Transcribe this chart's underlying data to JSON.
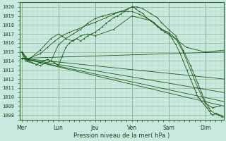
{
  "bg_color": "#c8e8e0",
  "grid_color_minor": "#b0d8b0",
  "grid_color_major": "#90b890",
  "line_color": "#1a5c1a",
  "ylabel_ticks": [
    1008,
    1009,
    1010,
    1011,
    1012,
    1013,
    1014,
    1015,
    1016,
    1017,
    1018,
    1019,
    1020
  ],
  "xlabel": "Pression niveau de la mer( hPa )",
  "day_labels": [
    "Mer",
    "Lun",
    "Jeu",
    "Ven",
    "Sam",
    "Dim"
  ],
  "day_positions": [
    0,
    1,
    2,
    3,
    4,
    5
  ],
  "xlim": [
    -0.05,
    5.5
  ],
  "ylim": [
    1007.5,
    1020.5
  ],
  "lines": [
    {
      "x": [
        0.0,
        0.1,
        0.15,
        0.2,
        0.5,
        0.7,
        0.9,
        1.1,
        1.3,
        1.5,
        1.8,
        2.0,
        2.3,
        2.5,
        2.7,
        2.9,
        3.0,
        3.15,
        3.3,
        3.5,
        3.7,
        3.8,
        4.0,
        4.2,
        4.4,
        4.6,
        4.7,
        4.8,
        4.9,
        5.0,
        5.1,
        5.15,
        5.25,
        5.35,
        5.45
      ],
      "y": [
        1015.0,
        1014.5,
        1014.2,
        1014.3,
        1014.8,
        1015.5,
        1016.2,
        1016.8,
        1017.2,
        1017.5,
        1018.0,
        1018.3,
        1018.8,
        1019.2,
        1019.5,
        1019.8,
        1020.0,
        1020.0,
        1019.8,
        1019.3,
        1018.8,
        1018.3,
        1017.5,
        1016.8,
        1015.2,
        1013.5,
        1012.5,
        1011.5,
        1010.5,
        1009.5,
        1008.8,
        1008.5,
        1008.2,
        1008.0,
        1007.8
      ]
    },
    {
      "x": [
        0.0,
        0.1,
        0.15,
        0.5,
        0.8,
        1.0,
        1.2,
        1.4,
        1.6,
        1.8,
        2.0,
        2.2,
        2.5,
        2.7,
        2.9,
        3.0,
        3.2,
        3.4,
        3.6,
        3.8,
        4.0,
        4.2,
        4.4,
        4.6,
        4.8,
        5.0,
        5.2,
        5.4
      ],
      "y": [
        1015.0,
        1014.3,
        1014.0,
        1015.2,
        1016.5,
        1017.0,
        1016.5,
        1017.0,
        1017.5,
        1018.2,
        1018.7,
        1019.0,
        1019.3,
        1019.5,
        1019.5,
        1019.5,
        1019.2,
        1018.8,
        1018.3,
        1017.5,
        1017.2,
        1016.5,
        1015.0,
        1013.0,
        1011.0,
        1009.3,
        1008.8,
        1009.0
      ]
    },
    {
      "x": [
        0.0,
        0.1,
        0.5,
        0.8,
        1.0,
        1.2,
        1.4,
        1.6,
        1.8,
        2.0,
        2.5,
        3.0,
        3.5,
        4.0,
        4.5,
        5.0,
        5.5
      ],
      "y": [
        1015.0,
        1014.0,
        1013.5,
        1014.0,
        1015.8,
        1016.5,
        1016.2,
        1016.8,
        1017.0,
        1016.8,
        1017.5,
        1019.0,
        1018.5,
        1017.0,
        1015.5,
        1015.0,
        1015.2
      ]
    },
    {
      "x": [
        0.0,
        5.5
      ],
      "y": [
        1014.3,
        1015.0
      ]
    },
    {
      "x": [
        0.0,
        5.5
      ],
      "y": [
        1014.3,
        1012.0
      ]
    },
    {
      "x": [
        0.0,
        5.5
      ],
      "y": [
        1014.3,
        1010.5
      ]
    },
    {
      "x": [
        0.0,
        5.5
      ],
      "y": [
        1014.3,
        1009.5
      ]
    },
    {
      "x": [
        0.0,
        5.5
      ],
      "y": [
        1014.3,
        1009.0
      ]
    },
    {
      "x": [
        0.0,
        0.05,
        0.1,
        0.15,
        0.2,
        0.3,
        0.4,
        0.5,
        0.6,
        0.7,
        0.8,
        0.9,
        1.0,
        1.1,
        1.2,
        1.3,
        1.4,
        1.5,
        1.6,
        1.7,
        1.8,
        1.9,
        2.0,
        2.1,
        2.2,
        2.3,
        2.4,
        2.5,
        2.6,
        2.7,
        2.8,
        2.9,
        3.0,
        3.05,
        3.1,
        3.2,
        3.3,
        3.4,
        3.5,
        3.6,
        3.7,
        3.8,
        3.9,
        4.0,
        4.1,
        4.2,
        4.3,
        4.4,
        4.5,
        4.6,
        4.7,
        4.75,
        4.8,
        4.85,
        4.9,
        4.95,
        5.0,
        5.05,
        5.1,
        5.15,
        5.2,
        5.3,
        5.4,
        5.45,
        5.5
      ],
      "y": [
        1015.0,
        1014.8,
        1014.5,
        1014.2,
        1014.0,
        1013.8,
        1013.6,
        1013.8,
        1014.0,
        1014.2,
        1014.0,
        1013.8,
        1013.5,
        1014.5,
        1015.5,
        1016.0,
        1016.3,
        1016.5,
        1016.2,
        1016.5,
        1016.8,
        1017.0,
        1017.2,
        1017.5,
        1017.8,
        1018.2,
        1018.5,
        1018.8,
        1019.0,
        1019.2,
        1019.5,
        1019.8,
        1020.0,
        1020.0,
        1019.8,
        1019.5,
        1019.3,
        1018.8,
        1018.5,
        1018.2,
        1017.8,
        1017.5,
        1017.2,
        1017.0,
        1016.5,
        1015.8,
        1015.0,
        1014.0,
        1013.0,
        1012.0,
        1011.0,
        1010.5,
        1010.0,
        1009.8,
        1009.5,
        1009.3,
        1009.0,
        1008.8,
        1008.5,
        1008.2,
        1008.0,
        1008.2,
        1008.0,
        1007.9,
        1007.8
      ]
    }
  ]
}
